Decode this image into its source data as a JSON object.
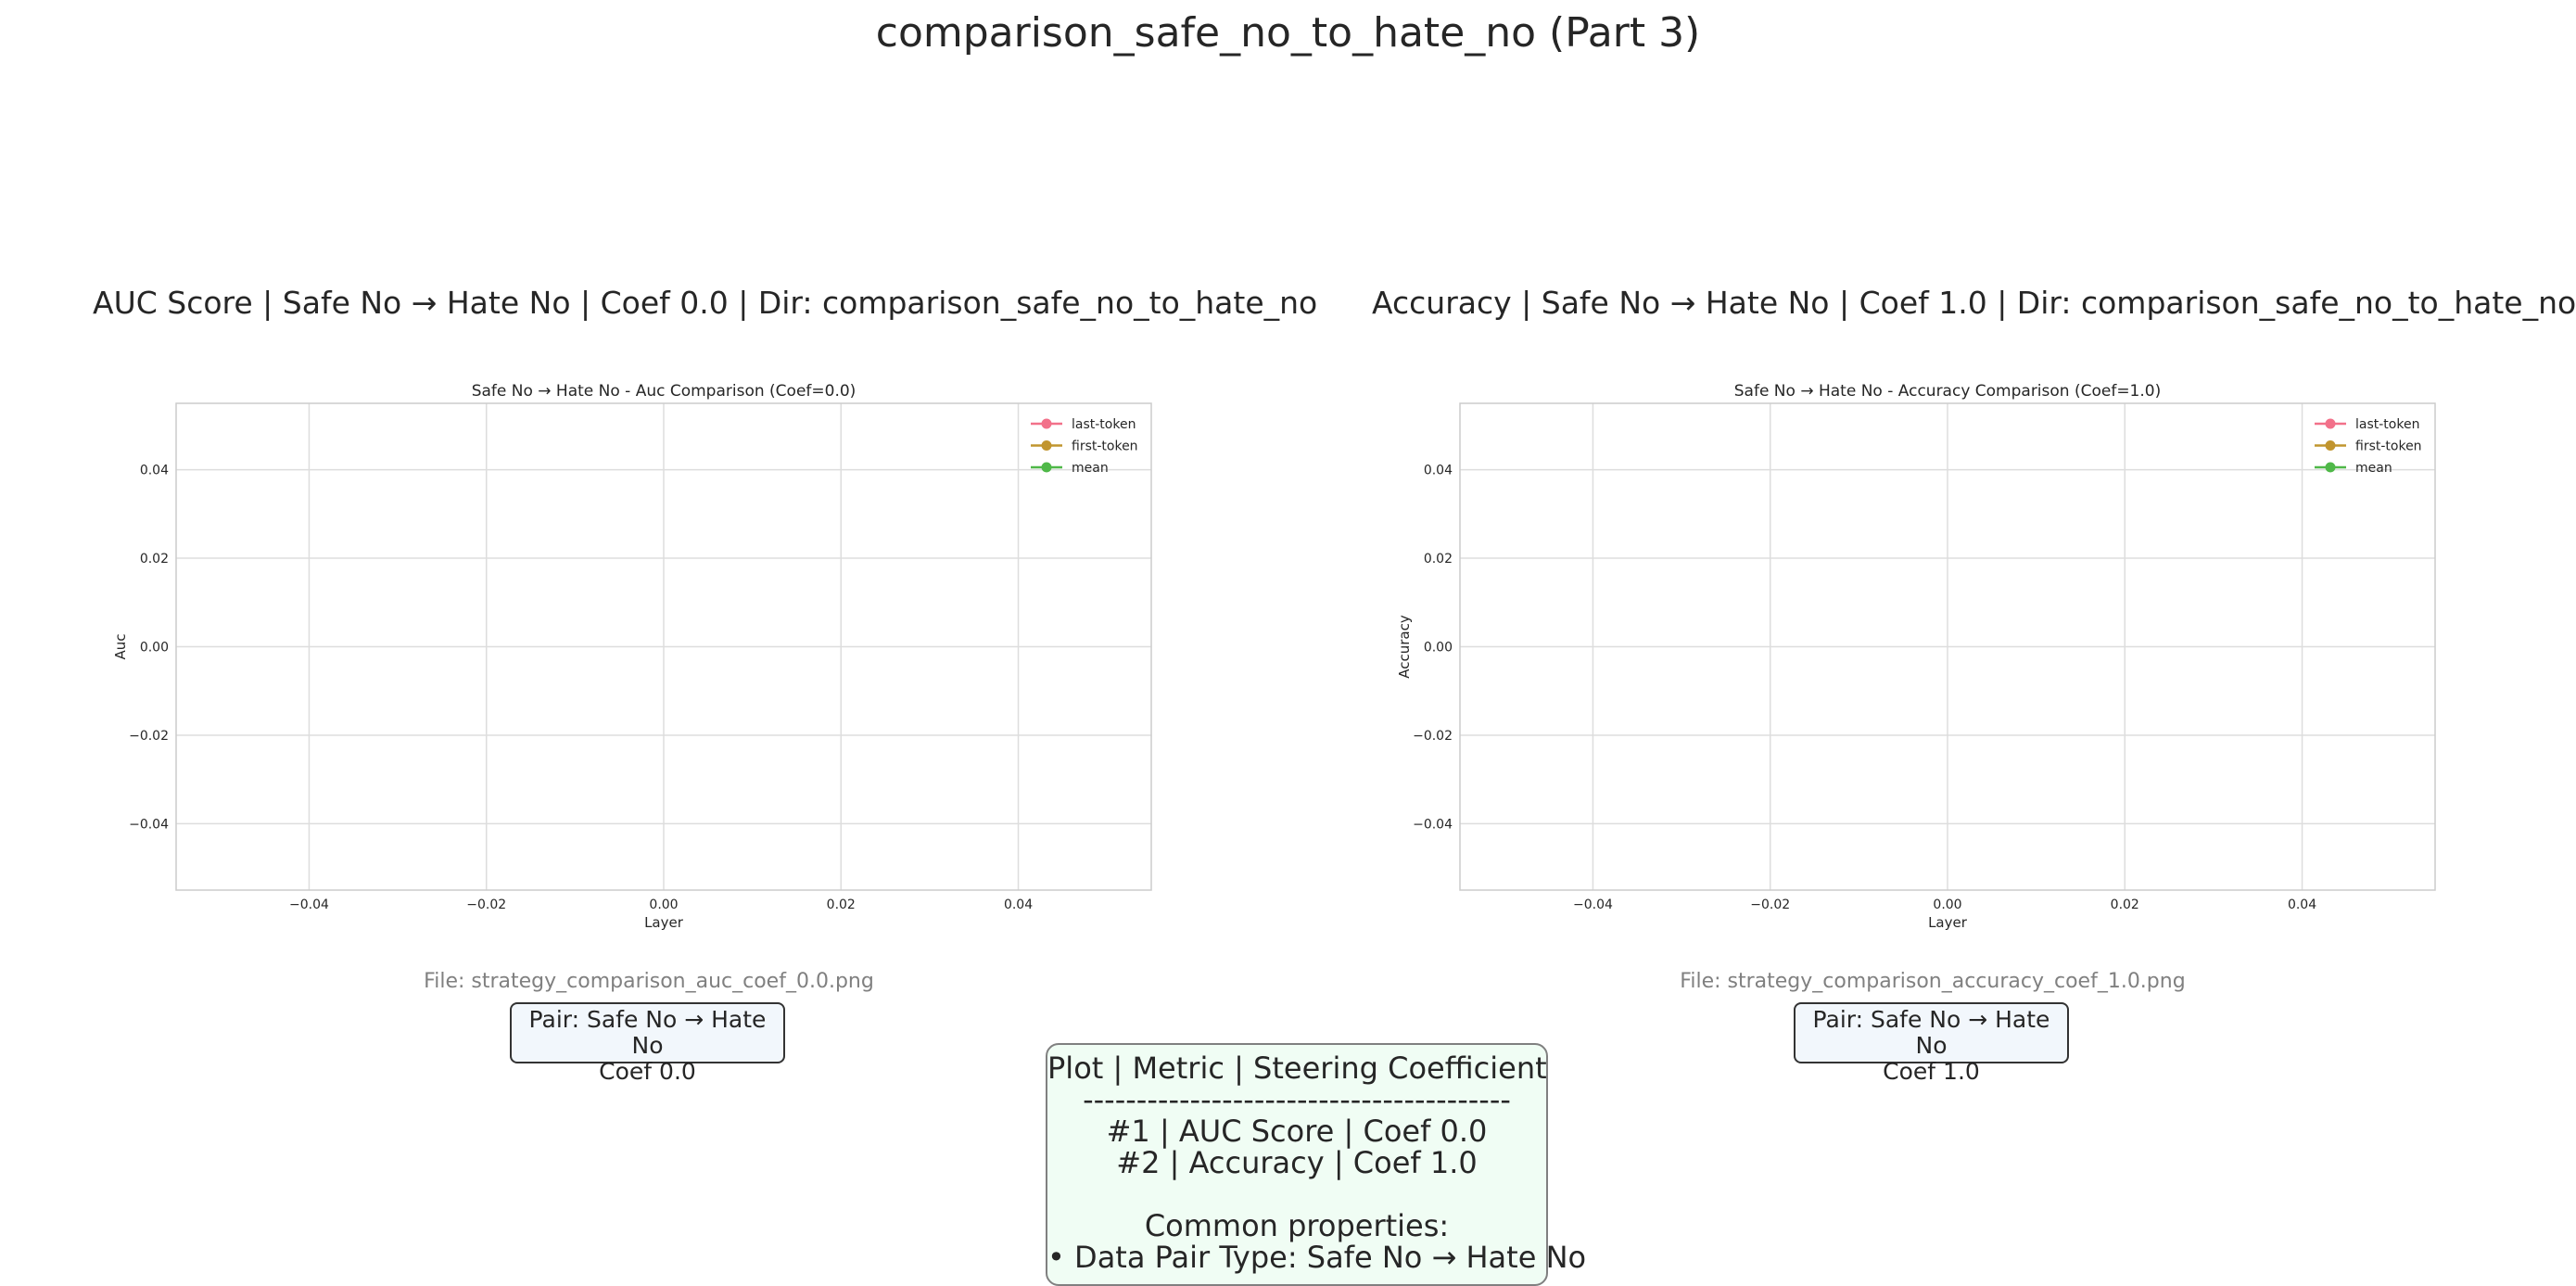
{
  "figure_title": "comparison_safe_no_to_hate_no (Part 3)",
  "panels": [
    {
      "title": "AUC Score | Safe No → Hate No | Coef 0.0 | Dir: comparison_safe_no_to_hate_no",
      "file": "File: strategy_comparison_auc_coef_0.0.png",
      "pair_line1": "Pair: Safe No → Hate No",
      "pair_line2": "Coef 0.0"
    },
    {
      "title": "Accuracy | Safe No → Hate No | Coef 1.0 | Dir: comparison_safe_no_to_hate_no",
      "file": "File: strategy_comparison_accuracy_coef_1.0.png",
      "pair_line1": "Pair: Safe No → Hate No",
      "pair_line2": "Coef 1.0"
    }
  ],
  "summary": {
    "header": "Plot | Metric | Steering Coefficient",
    "separator": "----------------------------------------",
    "row1": "#1 | AUC Score | Coef 0.0",
    "row2": "#2 | Accuracy | Coef 1.0",
    "common_label": "Common properties:",
    "common_item": "• Data Pair Type: Safe No → Hate No"
  },
  "chart_data": [
    {
      "type": "line",
      "title": "Safe No → Hate No - Auc Comparison (Coef=0.0)",
      "xlabel": "Layer",
      "ylabel": "Auc",
      "xlim": [
        -0.055,
        0.055
      ],
      "ylim": [
        -0.055,
        0.055
      ],
      "x_ticks": [
        "−0.04",
        "−0.02",
        "0.00",
        "0.02",
        "0.04"
      ],
      "y_ticks": [
        "0.04",
        "0.02",
        "0.00",
        "−0.02",
        "−0.04"
      ],
      "grid": true,
      "legend_position": "top-right",
      "series": [
        {
          "name": "last-token",
          "color": "#f2718a",
          "x": [],
          "y": []
        },
        {
          "name": "first-token",
          "color": "#c1952f",
          "x": [],
          "y": []
        },
        {
          "name": "mean",
          "color": "#4fb848",
          "x": [],
          "y": []
        }
      ]
    },
    {
      "type": "line",
      "title": "Safe No → Hate No - Accuracy Comparison (Coef=1.0)",
      "xlabel": "Layer",
      "ylabel": "Accuracy",
      "xlim": [
        -0.055,
        0.055
      ],
      "ylim": [
        -0.055,
        0.055
      ],
      "x_ticks": [
        "−0.04",
        "−0.02",
        "0.00",
        "0.02",
        "0.04"
      ],
      "y_ticks": [
        "0.04",
        "0.02",
        "0.00",
        "−0.02",
        "−0.04"
      ],
      "grid": true,
      "legend_position": "top-right",
      "series": [
        {
          "name": "last-token",
          "color": "#f2718a",
          "x": [],
          "y": []
        },
        {
          "name": "first-token",
          "color": "#c1952f",
          "x": [],
          "y": []
        },
        {
          "name": "mean",
          "color": "#4fb848",
          "x": [],
          "y": []
        }
      ]
    }
  ]
}
